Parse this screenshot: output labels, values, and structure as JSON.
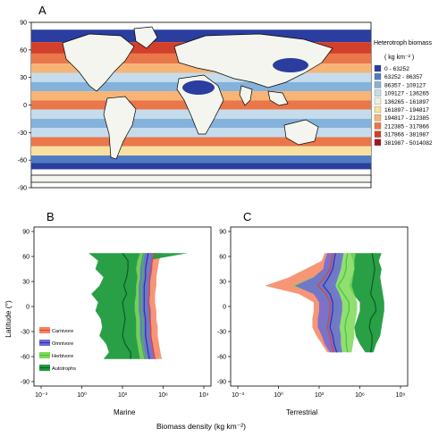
{
  "panels": {
    "a_label": "A",
    "b_label": "B",
    "c_label": "C"
  },
  "colors": {
    "carnivore": "#f4845f",
    "omnivore": "#6a6ad8",
    "herbivore": "#7ed957",
    "autotrophs": "#1e9a3c",
    "autotroph_line": "#0d5c22",
    "carn_line": "#e8402a",
    "omni_line": "#2d2db8",
    "herb_line": "#46c43a"
  },
  "chart_data": [
    {
      "type": "heatmap",
      "panel": "A",
      "title": "",
      "y_ticks": [
        "90",
        "60",
        "30",
        "0",
        "-30",
        "-60",
        "-90"
      ],
      "y_tick_values": [
        90,
        60,
        30,
        0,
        -30,
        -60,
        -90
      ],
      "legend": {
        "title": "Heterotroph biomass",
        "unit": "( kg km⁻² )",
        "placement": "right",
        "entries": [
          {
            "label": "0 - 63252",
            "color": "#2b3d9e"
          },
          {
            "label": "63252 - 86357",
            "color": "#4f7bc4"
          },
          {
            "label": "86357 - 109127",
            "color": "#84b2da"
          },
          {
            "label": "109127 - 136265",
            "color": "#c5dcec"
          },
          {
            "label": "136265 - 161897",
            "color": "#eef2e6"
          },
          {
            "label": "161897 - 194817",
            "color": "#f8e0a0"
          },
          {
            "label": "194817 - 212385",
            "color": "#f7b476"
          },
          {
            "label": "212385 - 317866",
            "color": "#e9774a"
          },
          {
            "label": "317866 - 381987",
            "color": "#d2402c"
          },
          {
            "label": "381987 - 5014082",
            "color": "#a4141e"
          }
        ]
      },
      "latitude_bands": [
        {
          "lat": 75,
          "value_class": 0
        },
        {
          "lat": 62,
          "value_class": 8
        },
        {
          "lat": 50,
          "value_class": 7
        },
        {
          "lat": 40,
          "value_class": 6
        },
        {
          "lat": 30,
          "value_class": 3
        },
        {
          "lat": 20,
          "value_class": 2
        },
        {
          "lat": 10,
          "value_class": 6
        },
        {
          "lat": 0,
          "value_class": 7
        },
        {
          "lat": -10,
          "value_class": 3
        },
        {
          "lat": -20,
          "value_class": 2
        },
        {
          "lat": -30,
          "value_class": 3
        },
        {
          "lat": -40,
          "value_class": 7
        },
        {
          "lat": -50,
          "value_class": 5
        },
        {
          "lat": -60,
          "value_class": 1
        },
        {
          "lat": -66,
          "value_class": 0
        }
      ]
    },
    {
      "type": "area",
      "panel": "B",
      "xlabel": "Marine",
      "x_scale": "log10",
      "xlim_exp": [
        -3,
        9
      ],
      "x_tick_labels": [
        "10⁻³",
        "10⁰",
        "10³",
        "10⁶",
        "10⁹"
      ],
      "x_tick_exp": [
        -3,
        0,
        3,
        6,
        9
      ],
      "ylim": [
        -90,
        90
      ],
      "legend_placement": "bottom-left",
      "series": [
        {
          "name": "Autotrophs",
          "lat": [
            64,
            55,
            45,
            35,
            25,
            15,
            5,
            -5,
            -15,
            -25,
            -35,
            -45,
            -55,
            -63
          ],
          "low_exp": [
            0.5,
            1.2,
            1.0,
            1.6,
            1.3,
            0.7,
            1.2,
            1.0,
            1.4,
            1.5,
            1.3,
            1.8,
            2.0,
            1.6
          ],
          "high_exp": [
            7.8,
            4.7,
            4.6,
            4.5,
            4.5,
            4.5,
            4.5,
            4.6,
            4.5,
            4.5,
            4.5,
            4.6,
            4.8,
            4.6
          ],
          "mid_exp": [
            3.0,
            3.4,
            3.4,
            3.3,
            3.1,
            3.3,
            3.0,
            3.1,
            3.2,
            3.1,
            3.0,
            3.2,
            3.6,
            3.6
          ]
        },
        {
          "name": "Herbivore",
          "lat": [
            64,
            55,
            45,
            35,
            25,
            15,
            5,
            -5,
            -15,
            -25,
            -35,
            -45,
            -55,
            -63
          ],
          "low_exp": [
            4.3,
            4.1,
            4.0,
            4.1,
            4.0,
            4.0,
            3.9,
            3.9,
            4.0,
            4.0,
            4.0,
            4.1,
            4.2,
            4.3
          ],
          "high_exp": [
            5.3,
            5.0,
            5.1,
            5.0,
            4.9,
            4.9,
            4.9,
            5.0,
            5.0,
            5.0,
            5.0,
            5.0,
            5.1,
            5.2
          ],
          "mid_exp": [
            4.6,
            4.5,
            4.5,
            4.5,
            4.4,
            4.4,
            4.4,
            4.4,
            4.5,
            4.5,
            4.5,
            4.5,
            4.6,
            4.7
          ]
        },
        {
          "name": "Omnivore",
          "lat": [
            64,
            55,
            45,
            35,
            25,
            15,
            5,
            -5,
            -15,
            -25,
            -35,
            -45,
            -55,
            -63
          ],
          "low_exp": [
            4.5,
            4.4,
            4.3,
            4.3,
            4.2,
            4.2,
            4.2,
            4.2,
            4.3,
            4.3,
            4.3,
            4.4,
            4.5,
            4.6
          ],
          "high_exp": [
            5.4,
            5.2,
            5.2,
            5.1,
            5.0,
            5.0,
            5.0,
            5.1,
            5.1,
            5.1,
            5.1,
            5.2,
            5.3,
            5.4
          ],
          "mid_exp": [
            4.9,
            4.8,
            4.7,
            4.7,
            4.6,
            4.6,
            4.6,
            4.6,
            4.7,
            4.7,
            4.7,
            4.8,
            4.9,
            5.0
          ]
        },
        {
          "name": "Carnivore",
          "lat": [
            64,
            55,
            45,
            35,
            25,
            15,
            5,
            -5,
            -15,
            -25,
            -35,
            -45,
            -55,
            -63
          ],
          "low_exp": [
            4.8,
            4.7,
            4.6,
            4.5,
            4.5,
            4.5,
            4.4,
            4.5,
            4.5,
            4.6,
            4.6,
            4.7,
            4.8,
            4.9
          ],
          "high_exp": [
            5.9,
            5.7,
            5.6,
            5.5,
            5.5,
            5.4,
            5.4,
            5.5,
            5.5,
            5.6,
            5.6,
            5.7,
            5.8,
            5.9
          ],
          "mid_exp": [
            5.3,
            5.2,
            5.1,
            5.0,
            5.0,
            5.0,
            4.9,
            5.0,
            5.0,
            5.1,
            5.1,
            5.2,
            5.3,
            5.4
          ]
        }
      ]
    },
    {
      "type": "area",
      "panel": "C",
      "xlabel": "Terrestrial",
      "x_scale": "log10",
      "xlim_exp": [
        -3,
        9
      ],
      "x_tick_labels": [
        "10⁻³",
        "10⁰",
        "10³",
        "10⁶",
        "10⁹"
      ],
      "x_tick_exp": [
        -3,
        0,
        3,
        6,
        9
      ],
      "ylim": [
        -90,
        90
      ],
      "series": [
        {
          "name": "Autotrophs",
          "lat": [
            64,
            55,
            45,
            35,
            25,
            15,
            5,
            -5,
            -15,
            -25,
            -35,
            -45,
            -55
          ],
          "low_exp": [
            5.3,
            5.5,
            5.6,
            5.4,
            5.2,
            5.5,
            6.0,
            6.0,
            5.8,
            5.6,
            5.7,
            6.0,
            6.4
          ],
          "high_exp": [
            7.6,
            7.4,
            7.6,
            7.5,
            7.6,
            7.7,
            7.8,
            7.8,
            7.7,
            7.6,
            7.5,
            7.2,
            7.0
          ],
          "mid_exp": [
            6.9,
            7.0,
            7.1,
            7.0,
            6.9,
            6.8,
            7.1,
            7.2,
            6.8,
            6.7,
            6.9,
            6.9,
            6.8
          ]
        },
        {
          "name": "Herbivore",
          "lat": [
            64,
            55,
            45,
            35,
            25,
            15,
            5,
            -5,
            -15,
            -25,
            -35,
            -45,
            -55
          ],
          "low_exp": [
            4.0,
            3.8,
            3.7,
            2.5,
            1.0,
            2.8,
            3.6,
            3.6,
            3.4,
            3.2,
            3.6,
            4.0,
            4.4
          ],
          "high_exp": [
            5.7,
            5.6,
            5.6,
            5.5,
            5.4,
            5.6,
            5.8,
            5.8,
            5.7,
            5.6,
            5.6,
            5.5,
            5.4
          ],
          "mid_exp": [
            5.1,
            5.0,
            5.0,
            4.8,
            4.4,
            4.8,
            5.2,
            5.2,
            5.0,
            4.9,
            5.0,
            5.0,
            5.1
          ]
        },
        {
          "name": "Omnivore",
          "lat": [
            64,
            55,
            45,
            35,
            25,
            15,
            5,
            -5,
            -15,
            -25,
            -35,
            -45,
            -55
          ],
          "low_exp": [
            3.6,
            3.4,
            3.3,
            2.6,
            1.2,
            2.6,
            3.0,
            3.0,
            2.9,
            2.9,
            3.2,
            3.4,
            3.8
          ],
          "high_exp": [
            4.8,
            4.7,
            4.6,
            4.4,
            4.2,
            4.5,
            4.7,
            4.7,
            4.6,
            4.5,
            4.6,
            4.6,
            4.7
          ],
          "mid_exp": [
            4.2,
            4.1,
            4.0,
            3.7,
            3.3,
            3.8,
            4.0,
            4.0,
            3.9,
            3.8,
            4.0,
            4.1,
            4.3
          ]
        },
        {
          "name": "Carnivore",
          "lat": [
            64,
            55,
            45,
            35,
            25,
            15,
            5,
            -5,
            -15,
            -25,
            -35,
            -45,
            -55
          ],
          "low_exp": [
            3.4,
            3.2,
            2.0,
            0.8,
            -1.0,
            1.5,
            2.6,
            2.6,
            2.5,
            2.5,
            2.8,
            3.2,
            3.6
          ],
          "high_exp": [
            4.6,
            4.5,
            4.4,
            4.2,
            3.8,
            4.2,
            4.4,
            4.4,
            4.3,
            4.2,
            4.3,
            4.4,
            4.5
          ],
          "mid_exp": [
            4.0,
            3.9,
            3.8,
            3.4,
            2.9,
            3.5,
            3.8,
            3.8,
            3.7,
            3.6,
            3.8,
            3.9,
            4.1
          ]
        }
      ]
    }
  ],
  "shared_axes": {
    "y_label": "Latitude (°)",
    "x_label": "Biomass density (kg km⁻²)",
    "y_ticks": [
      "90",
      "60",
      "30",
      "0",
      "-30",
      "-60",
      "-90"
    ],
    "y_tick_values": [
      90,
      60,
      30,
      0,
      -30,
      -60,
      -90
    ]
  },
  "legend_b": [
    {
      "label": "Carnivore",
      "color": "#f4845f",
      "line": "#e8402a"
    },
    {
      "label": "Omnivore",
      "color": "#6a6ad8",
      "line": "#2d2db8"
    },
    {
      "label": "Herbivore",
      "color": "#7ed957",
      "line": "#46c43a"
    },
    {
      "label": "Autotrophs",
      "color": "#1e9a3c",
      "line": "#0d5c22"
    }
  ]
}
